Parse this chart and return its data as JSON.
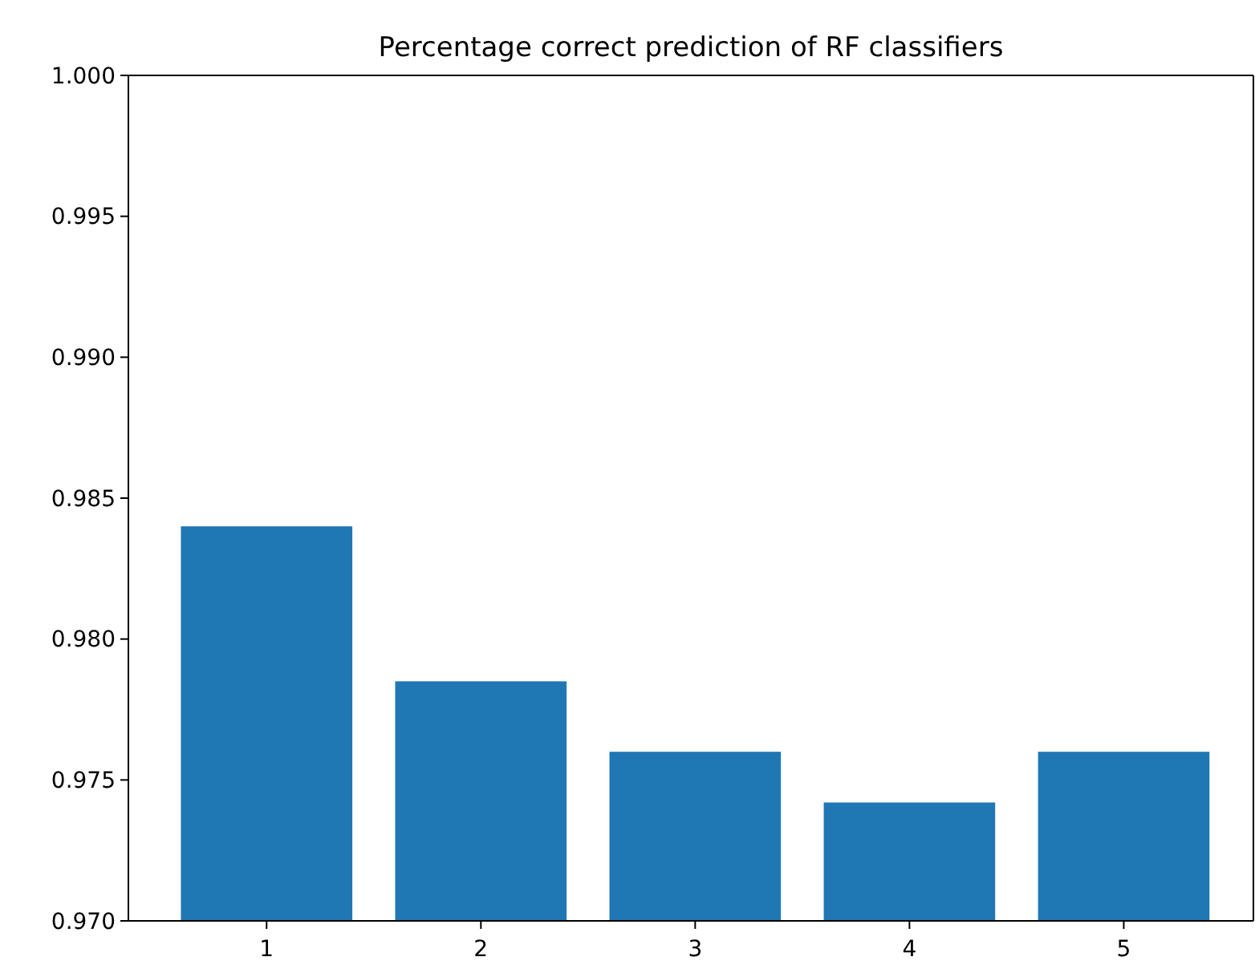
{
  "chart_data": {
    "type": "bar",
    "title": "Percentage correct prediction of RF classifiers",
    "categories": [
      "1",
      "2",
      "3",
      "4",
      "5"
    ],
    "values": [
      0.984,
      0.9785,
      0.976,
      0.9742,
      0.976
    ],
    "color": "#1f77b4",
    "ylim": [
      0.97,
      1.0
    ],
    "yticks": [
      {
        "value": 0.97,
        "label": "0.970"
      },
      {
        "value": 0.975,
        "label": "0.975"
      },
      {
        "value": 0.98,
        "label": "0.980"
      },
      {
        "value": 0.985,
        "label": "0.985"
      },
      {
        "value": 0.99,
        "label": "0.990"
      },
      {
        "value": 0.995,
        "label": "0.995"
      },
      {
        "value": 1.0,
        "label": "1.000"
      }
    ],
    "grid": false
  }
}
